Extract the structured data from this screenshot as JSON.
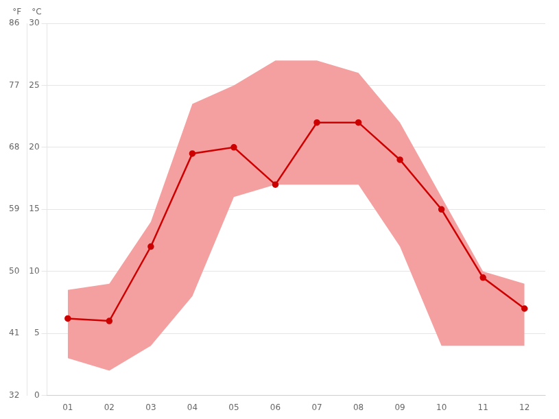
{
  "chart_data": {
    "type": "line",
    "categories": [
      "01",
      "02",
      "03",
      "04",
      "05",
      "06",
      "07",
      "08",
      "09",
      "10",
      "11",
      "12"
    ],
    "series": [
      {
        "type": "band",
        "color": "#f5a0a0",
        "low": [
          3.0,
          2.0,
          4.0,
          8.0,
          16.0,
          17.0,
          17.0,
          17.0,
          12.0,
          4.0,
          4.0,
          4.0
        ],
        "high": [
          8.5,
          9.0,
          14.0,
          23.5,
          25.0,
          27.0,
          27.0,
          26.0,
          22.0,
          16.0,
          10.0,
          9.0
        ]
      },
      {
        "type": "line",
        "color": "#cc0000",
        "marker": "o",
        "values": [
          6.2,
          6.0,
          12.0,
          19.5,
          20.0,
          17.0,
          22.0,
          22.0,
          19.0,
          15.0,
          9.5,
          7.0
        ]
      }
    ],
    "ylim": [
      0,
      30
    ],
    "yticks": [
      0,
      5,
      10,
      15,
      20,
      25,
      30
    ],
    "y2lim": [
      32,
      86
    ],
    "y2ticks": [
      32,
      41,
      50,
      59,
      68,
      77,
      86
    ],
    "ylabel": "°C",
    "y2label": "°F",
    "grid": true
  }
}
